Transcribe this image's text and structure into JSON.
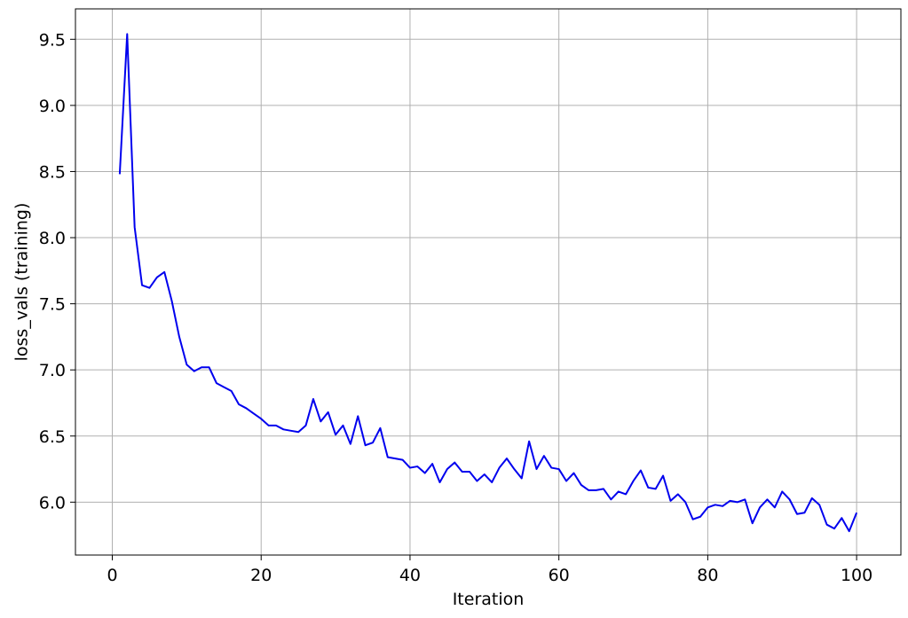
{
  "chart_data": {
    "type": "line",
    "title": "",
    "xlabel": "Iteration",
    "ylabel": "loss_vals (training)",
    "xlim": [
      -4.95,
      105.95
    ],
    "ylim": [
      5.6,
      9.73
    ],
    "grid": true,
    "xticks": [
      0,
      20,
      40,
      60,
      80,
      100
    ],
    "xtick_labels": [
      "0",
      "20",
      "40",
      "60",
      "80",
      "100"
    ],
    "yticks": [
      6.0,
      6.5,
      7.0,
      7.5,
      8.0,
      8.5,
      9.0,
      9.5
    ],
    "ytick_labels": [
      "6.0",
      "6.5",
      "7.0",
      "7.5",
      "8.0",
      "8.5",
      "9.0",
      "9.5"
    ],
    "colors": {
      "line": "#0000ee",
      "grid": "#b0b0b0",
      "axes": "#000000"
    },
    "series": [
      {
        "x": [
          1,
          2,
          3,
          4,
          5,
          6,
          7,
          8,
          9,
          10,
          11,
          12,
          13,
          14,
          15,
          16,
          17,
          18,
          19,
          20,
          21,
          22,
          23,
          24,
          25,
          26,
          27,
          28,
          29,
          30,
          31,
          32,
          33,
          34,
          35,
          36,
          37,
          38,
          39,
          40,
          41,
          42,
          43,
          44,
          45,
          46,
          47,
          48,
          49,
          50,
          51,
          52,
          53,
          54,
          55,
          56,
          57,
          58,
          59,
          60,
          61,
          62,
          63,
          64,
          65,
          66,
          67,
          68,
          69,
          70,
          71,
          72,
          73,
          74,
          75,
          76,
          77,
          78,
          79,
          80,
          81,
          82,
          83,
          84,
          85,
          86,
          87,
          88,
          89,
          90,
          91,
          92,
          93,
          94,
          95,
          96,
          97,
          98,
          99,
          100
        ],
        "values": [
          8.48,
          9.54,
          8.08,
          7.64,
          7.62,
          7.7,
          7.74,
          7.52,
          7.25,
          7.04,
          6.99,
          7.02,
          7.02,
          6.9,
          6.87,
          6.84,
          6.74,
          6.71,
          6.67,
          6.63,
          6.58,
          6.58,
          6.55,
          6.54,
          6.53,
          6.58,
          6.78,
          6.61,
          6.68,
          6.51,
          6.58,
          6.44,
          6.65,
          6.43,
          6.45,
          6.56,
          6.34,
          6.33,
          6.32,
          6.26,
          6.27,
          6.22,
          6.29,
          6.15,
          6.25,
          6.3,
          6.23,
          6.23,
          6.16,
          6.21,
          6.15,
          6.26,
          6.33,
          6.25,
          6.18,
          6.46,
          6.25,
          6.35,
          6.26,
          6.25,
          6.16,
          6.22,
          6.13,
          6.09,
          6.09,
          6.1,
          6.02,
          6.08,
          6.06,
          6.16,
          6.24,
          6.11,
          6.1,
          6.2,
          6.01,
          6.06,
          6.0,
          5.87,
          5.89,
          5.96,
          5.98,
          5.97,
          6.01,
          6.0,
          6.02,
          5.84,
          5.96,
          6.02,
          5.96,
          6.08,
          6.02,
          5.91,
          5.92,
          6.03,
          5.98,
          5.83,
          5.8,
          5.88,
          5.78,
          5.92
        ]
      }
    ]
  }
}
